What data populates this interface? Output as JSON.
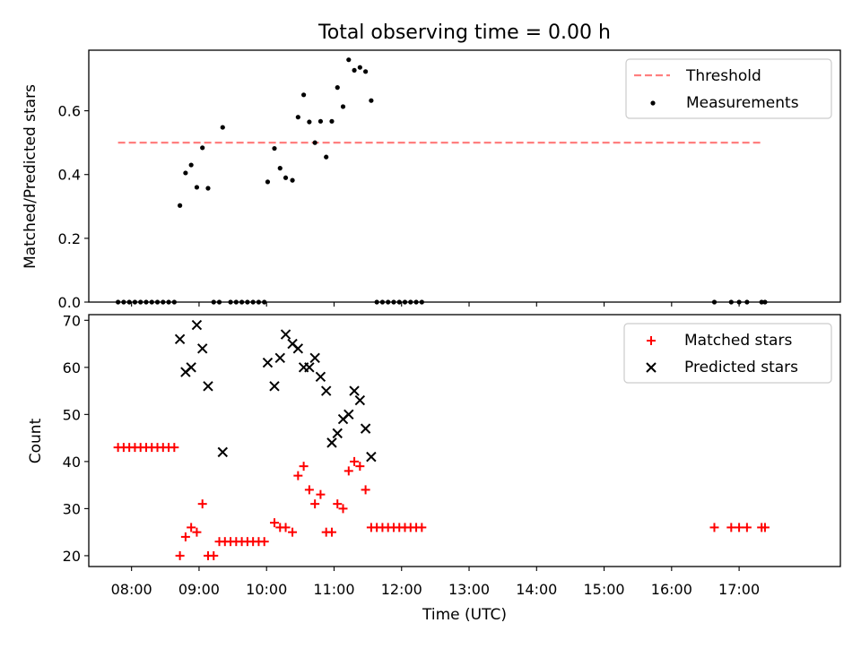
{
  "figure": {
    "title": "Total observing time = 0.00 h"
  },
  "chart_data": [
    {
      "type": "scatter",
      "panel": "top",
      "ylabel": "Matched/Predicted stars",
      "xlabel": "",
      "xlim": [
        "07:22",
        "18:30"
      ],
      "ylim": [
        0,
        0.79
      ],
      "yticks": [
        0.0,
        0.2,
        0.4,
        0.6
      ],
      "ytick_labels": [
        "0.0",
        "0.2",
        "0.4",
        "0.6"
      ],
      "grid": false,
      "legend": {
        "placement": "top-right",
        "entries": [
          "Threshold",
          "Measurements"
        ]
      },
      "series": [
        {
          "name": "Threshold",
          "kind": "dashed-line",
          "color": "#ff7f7f",
          "x": [
            "07:48",
            "17:20"
          ],
          "y": [
            0.5,
            0.5
          ]
        },
        {
          "name": "Measurements",
          "kind": "points",
          "color": "#000000",
          "points": [
            [
              "07:48",
              0.0
            ],
            [
              "07:53",
              0.0
            ],
            [
              "07:58",
              0.0
            ],
            [
              "08:03",
              0.0
            ],
            [
              "08:08",
              0.0
            ],
            [
              "08:13",
              0.0
            ],
            [
              "08:18",
              0.0
            ],
            [
              "08:23",
              0.0
            ],
            [
              "08:28",
              0.0
            ],
            [
              "08:33",
              0.0
            ],
            [
              "08:38",
              0.0
            ],
            [
              "08:43",
              0.303
            ],
            [
              "08:48",
              0.405
            ],
            [
              "08:53",
              0.43
            ],
            [
              "08:58",
              0.36
            ],
            [
              "09:03",
              0.484
            ],
            [
              "09:08",
              0.357
            ],
            [
              "09:13",
              0.0
            ],
            [
              "09:18",
              0.0
            ],
            [
              "09:21",
              0.548
            ],
            [
              "09:28",
              0.0
            ],
            [
              "09:33",
              0.0
            ],
            [
              "09:38",
              0.0
            ],
            [
              "09:43",
              0.0
            ],
            [
              "09:48",
              0.0
            ],
            [
              "09:53",
              0.0
            ],
            [
              "09:58",
              0.0
            ],
            [
              "10:01",
              0.377
            ],
            [
              "10:07",
              0.482
            ],
            [
              "10:12",
              0.42
            ],
            [
              "10:17",
              0.39
            ],
            [
              "10:23",
              0.382
            ],
            [
              "10:28",
              0.58
            ],
            [
              "10:33",
              0.65
            ],
            [
              "10:38",
              0.565
            ],
            [
              "10:43",
              0.5
            ],
            [
              "10:48",
              0.567
            ],
            [
              "10:53",
              0.455
            ],
            [
              "10:58",
              0.567
            ],
            [
              "11:03",
              0.673
            ],
            [
              "11:08",
              0.613
            ],
            [
              "11:13",
              0.76
            ],
            [
              "11:18",
              0.727
            ],
            [
              "11:23",
              0.736
            ],
            [
              "11:28",
              0.723
            ],
            [
              "11:33",
              0.632
            ],
            [
              "11:38",
              0.0
            ],
            [
              "11:43",
              0.0
            ],
            [
              "11:48",
              0.0
            ],
            [
              "11:53",
              0.0
            ],
            [
              "11:58",
              0.0
            ],
            [
              "12:03",
              0.0
            ],
            [
              "12:08",
              0.0
            ],
            [
              "12:13",
              0.0
            ],
            [
              "12:18",
              0.0
            ],
            [
              "16:38",
              0.0
            ],
            [
              "16:53",
              0.0
            ],
            [
              "17:00",
              0.0
            ],
            [
              "17:07",
              0.0
            ],
            [
              "17:20",
              0.0
            ],
            [
              "17:23",
              0.0
            ]
          ]
        }
      ]
    },
    {
      "type": "scatter",
      "panel": "bottom",
      "xlabel": "Time (UTC)",
      "ylabel": "Count",
      "xlim": [
        "07:22",
        "18:30"
      ],
      "xticks": [
        "08:00",
        "09:00",
        "10:00",
        "11:00",
        "12:00",
        "13:00",
        "14:00",
        "15:00",
        "16:00",
        "17:00"
      ],
      "ylim": [
        17.7,
        71.2
      ],
      "yticks": [
        20,
        30,
        40,
        50,
        60,
        70
      ],
      "grid": false,
      "legend": {
        "placement": "top-right",
        "entries": [
          "Matched stars",
          "Predicted stars"
        ]
      },
      "series": [
        {
          "name": "Matched stars",
          "marker": "plus",
          "color": "#ff0000",
          "points": [
            [
              "07:48",
              43
            ],
            [
              "07:53",
              43
            ],
            [
              "07:58",
              43
            ],
            [
              "08:03",
              43
            ],
            [
              "08:08",
              43
            ],
            [
              "08:13",
              43
            ],
            [
              "08:18",
              43
            ],
            [
              "08:23",
              43
            ],
            [
              "08:28",
              43
            ],
            [
              "08:33",
              43
            ],
            [
              "08:38",
              43
            ],
            [
              "08:43",
              20
            ],
            [
              "08:48",
              24
            ],
            [
              "08:53",
              26
            ],
            [
              "08:58",
              25
            ],
            [
              "09:03",
              31
            ],
            [
              "09:08",
              20
            ],
            [
              "09:13",
              20
            ],
            [
              "09:18",
              23
            ],
            [
              "09:23",
              23
            ],
            [
              "09:28",
              23
            ],
            [
              "09:33",
              23
            ],
            [
              "09:38",
              23
            ],
            [
              "09:43",
              23
            ],
            [
              "09:48",
              23
            ],
            [
              "09:53",
              23
            ],
            [
              "09:58",
              23
            ],
            [
              "10:07",
              27
            ],
            [
              "10:12",
              26
            ],
            [
              "10:17",
              26
            ],
            [
              "10:23",
              25
            ],
            [
              "10:28",
              37
            ],
            [
              "10:33",
              39
            ],
            [
              "10:38",
              34
            ],
            [
              "10:43",
              31
            ],
            [
              "10:48",
              33
            ],
            [
              "10:53",
              25
            ],
            [
              "10:58",
              25
            ],
            [
              "11:03",
              31
            ],
            [
              "11:08",
              30
            ],
            [
              "11:13",
              38
            ],
            [
              "11:18",
              40
            ],
            [
              "11:23",
              39
            ],
            [
              "11:28",
              34
            ],
            [
              "11:33",
              26
            ],
            [
              "11:38",
              26
            ],
            [
              "11:43",
              26
            ],
            [
              "11:48",
              26
            ],
            [
              "11:53",
              26
            ],
            [
              "11:58",
              26
            ],
            [
              "12:03",
              26
            ],
            [
              "12:08",
              26
            ],
            [
              "12:13",
              26
            ],
            [
              "12:18",
              26
            ],
            [
              "16:38",
              26
            ],
            [
              "16:53",
              26
            ],
            [
              "17:00",
              26
            ],
            [
              "17:07",
              26
            ],
            [
              "17:20",
              26
            ],
            [
              "17:23",
              26
            ]
          ]
        },
        {
          "name": "Predicted stars",
          "marker": "x",
          "color": "#000000",
          "points": [
            [
              "08:43",
              66
            ],
            [
              "08:48",
              59
            ],
            [
              "08:53",
              60
            ],
            [
              "08:58",
              69
            ],
            [
              "09:03",
              64
            ],
            [
              "09:08",
              56
            ],
            [
              "09:21",
              42
            ],
            [
              "10:01",
              61
            ],
            [
              "10:07",
              56
            ],
            [
              "10:12",
              62
            ],
            [
              "10:17",
              67
            ],
            [
              "10:23",
              65
            ],
            [
              "10:28",
              64
            ],
            [
              "10:33",
              60
            ],
            [
              "10:38",
              60
            ],
            [
              "10:43",
              62
            ],
            [
              "10:48",
              58
            ],
            [
              "10:53",
              55
            ],
            [
              "10:58",
              44
            ],
            [
              "11:03",
              46
            ],
            [
              "11:08",
              49
            ],
            [
              "11:13",
              50
            ],
            [
              "11:18",
              55
            ],
            [
              "11:23",
              53
            ],
            [
              "11:28",
              47
            ],
            [
              "11:33",
              41
            ]
          ]
        }
      ]
    }
  ]
}
